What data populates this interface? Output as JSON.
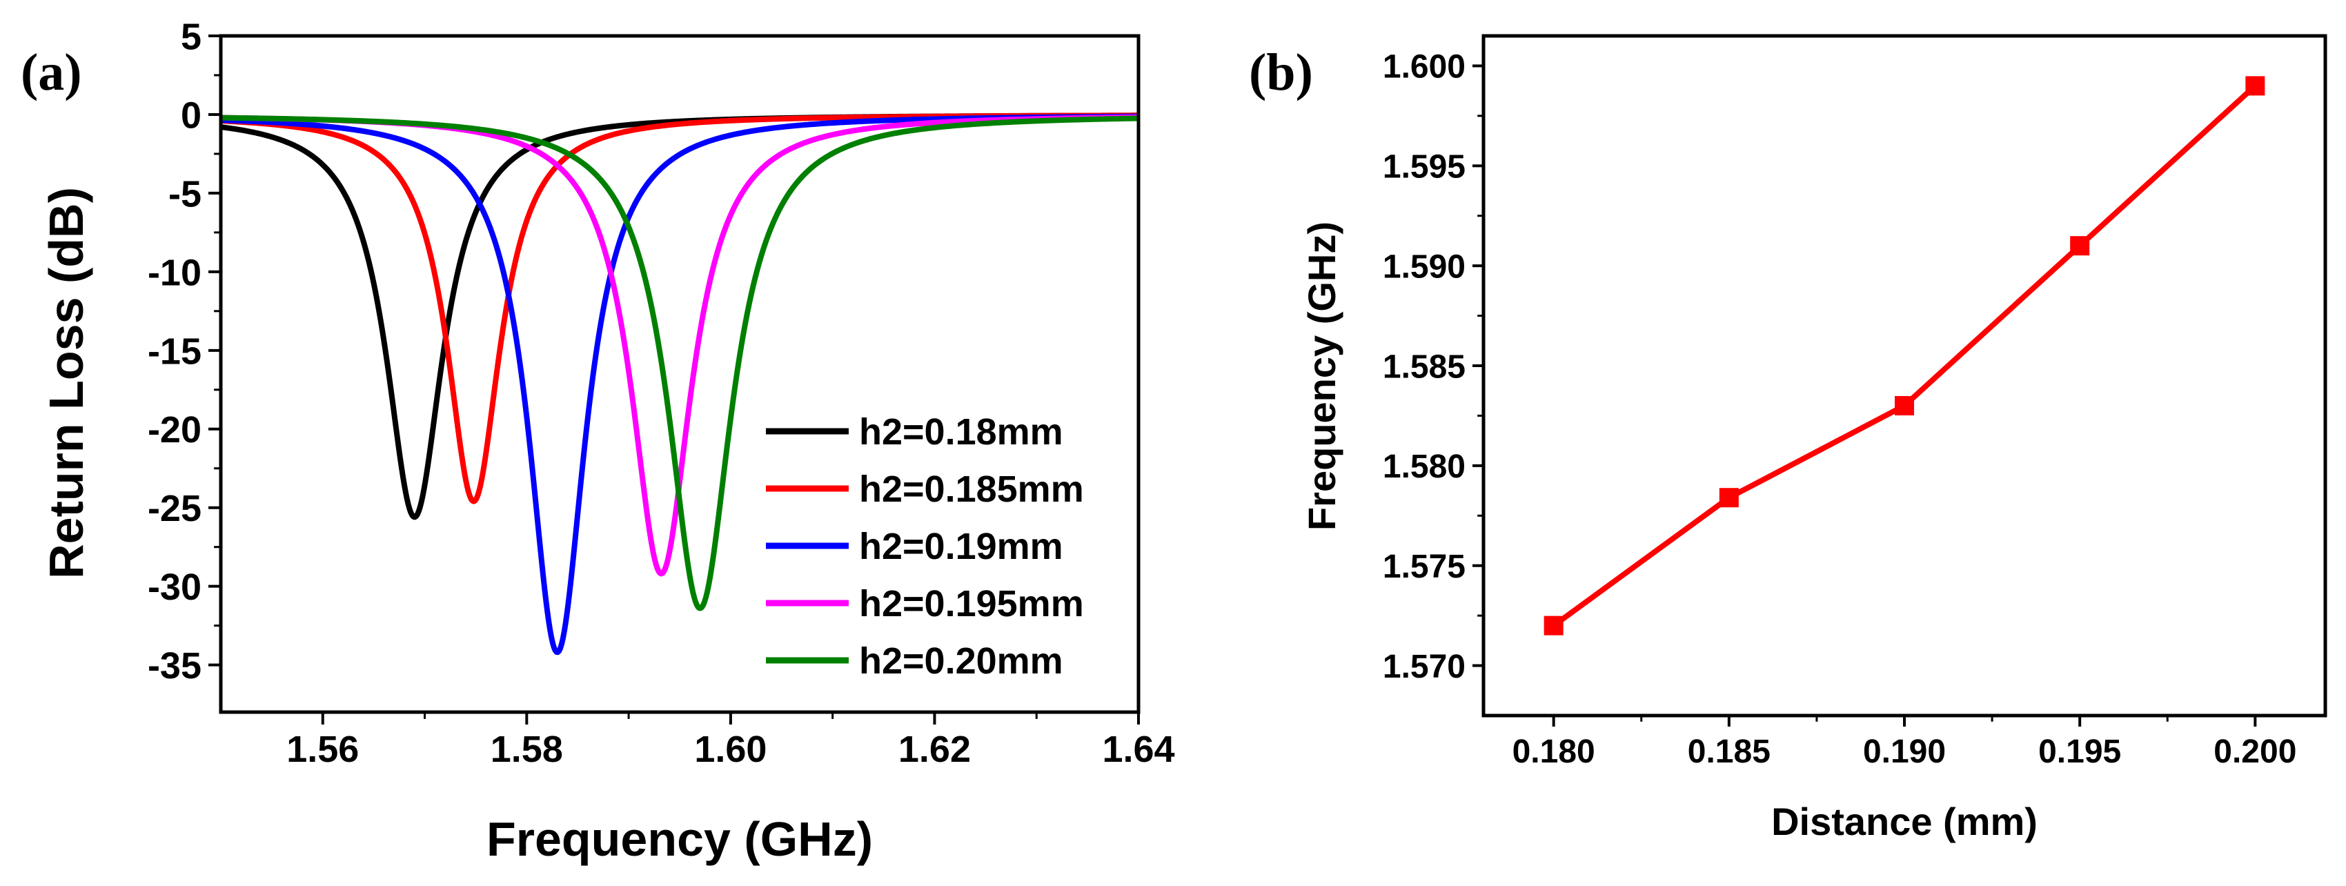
{
  "chart_data": [
    {
      "panel_label": "(a)",
      "type": "line",
      "title": "",
      "xlabel": "Frequency (GHz)",
      "ylabel": "Return Loss (dB)",
      "xlim": [
        1.55,
        1.64
      ],
      "ylim": [
        -38,
        5
      ],
      "xticks": [
        1.56,
        1.58,
        1.6,
        1.62,
        1.64
      ],
      "xtick_labels": [
        "1.56",
        "1.58",
        "1.60",
        "1.62",
        "1.64"
      ],
      "yticks": [
        5,
        0,
        -5,
        -10,
        -15,
        -20,
        -25,
        -30,
        -35
      ],
      "ytick_labels": [
        "5",
        "0",
        "-5",
        "-10",
        "-15",
        "-20",
        "-25",
        "-30",
        "-35"
      ],
      "legend_position": "lower-right",
      "grid": false,
      "series": [
        {
          "name": "h2=0.18mm",
          "color": "#000000",
          "resonance_ghz": 1.569,
          "min_db": -25.6,
          "half_width_ghz": 0.0034
        },
        {
          "name": "h2=0.185mm",
          "color": "#ff0000",
          "resonance_ghz": 1.5748,
          "min_db": -24.6,
          "half_width_ghz": 0.0032
        },
        {
          "name": "h2=0.19mm",
          "color": "#0000ff",
          "resonance_ghz": 1.583,
          "min_db": -34.2,
          "half_width_ghz": 0.0034
        },
        {
          "name": "h2=0.195mm",
          "color": "#ff00ff",
          "resonance_ghz": 1.5932,
          "min_db": -29.2,
          "half_width_ghz": 0.0036
        },
        {
          "name": "h2=0.20mm",
          "color": "#008000",
          "resonance_ghz": 1.597,
          "min_db": -31.4,
          "half_width_ghz": 0.0038
        }
      ]
    },
    {
      "panel_label": "(b)",
      "type": "line",
      "title": "",
      "xlabel": "Distance (mm)",
      "ylabel": "Frequency (GHz)",
      "xlim": [
        0.178,
        0.202
      ],
      "ylim": [
        1.5675,
        1.6015
      ],
      "xticks": [
        0.18,
        0.185,
        0.19,
        0.195,
        0.2
      ],
      "xtick_labels": [
        "0.180",
        "0.185",
        "0.190",
        "0.195",
        "0.200"
      ],
      "yticks": [
        1.57,
        1.575,
        1.58,
        1.585,
        1.59,
        1.595,
        1.6
      ],
      "ytick_labels": [
        "1.570",
        "1.575",
        "1.580",
        "1.585",
        "1.590",
        "1.595",
        "1.600"
      ],
      "grid": false,
      "series": [
        {
          "name": "Frequency",
          "color": "#ff0000",
          "marker": "square",
          "x": [
            0.18,
            0.185,
            0.19,
            0.195,
            0.2
          ],
          "y": [
            1.572,
            1.5784,
            1.583,
            1.591,
            1.599
          ]
        }
      ]
    }
  ]
}
